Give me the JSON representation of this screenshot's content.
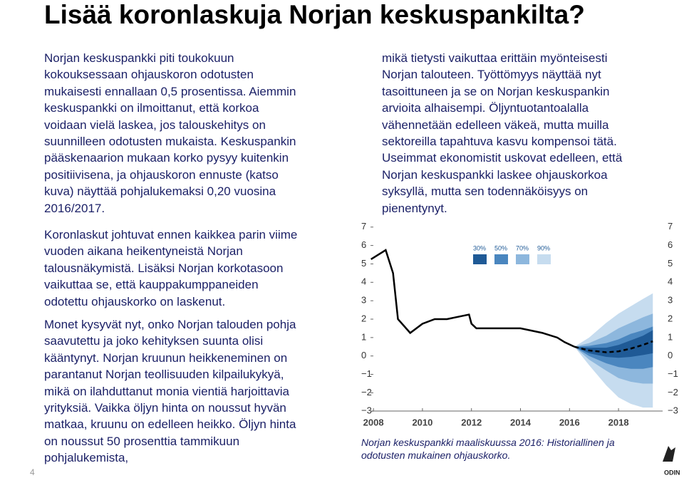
{
  "title": "Lisää koronlaskuja Norjan keskuspankilta?",
  "left_column": {
    "paragraphs": [
      {
        "lines": [
          "Norjan keskuspankki piti toukokuun",
          "kokouksessaan ohjauskoron odotusten",
          "mukaisesti ennallaan 0,5 prosentissa. Aiemmin",
          "keskuspankki on ilmoittanut, että korkoa",
          "voidaan vielä laskea, jos talouskehitys on",
          "suunnilleen odotusten mukaista. Keskuspankin",
          "pääskenaarion mukaan korko pysyy kuitenkin",
          "positiivisena, ja ohjauskoron ennuste (katso",
          "kuva) näyttää pohjalukemaksi 0,20 vuosina",
          "2016/2017."
        ]
      },
      {
        "lines": [
          "Koronlaskut johtuvat ennen kaikkea parin viime",
          "vuoden aikana heikentyneistä Norjan",
          "talousnäkymistä. Lisäksi Norjan korkotasoon",
          "vaikuttaa se, että kauppakumppaneiden",
          "odotettu ohjauskorko on laskenut."
        ]
      },
      {
        "lines": [
          "Monet kysyvät nyt, onko Norjan talouden pohja",
          "saavutettu ja joko kehityksen suunta olisi",
          "kääntynyt. Norjan kruunun heikkeneminen on",
          "parantanut Norjan teollisuuden kilpailukykyä,",
          "mikä on ilahduttanut monia vientiä harjoittavia",
          "yrityksiä. Vaikka öljyn hinta on noussut hyvän",
          "matkaa, kruunu on edelleen heikko. Öljyn hinta",
          "on noussut 50 prosenttia tammikuun",
          "pohjalukemista,"
        ]
      }
    ]
  },
  "right_column": {
    "lines": [
      "mikä tietysti vaikuttaa erittäin myönteisesti",
      "Norjan talouteen. Työttömyys näyttää nyt",
      "tasoittuneen ja se on Norjan keskuspankin",
      "arvioita alhaisempi. Öljyntuotantoalalla",
      "vähennetään edelleen väkeä, mutta muilla",
      "sektoreilla tapahtuva kasvu kompensoi tätä.",
      "Useimmat ekonomistit uskovat edelleen, että",
      "Norjan keskuspankki laskee ohjauskorkoa",
      "syksyllä, mutta sen todennäköisyys on",
      "pienentynyt."
    ]
  },
  "chart_data": {
    "type": "fan",
    "x_history": [
      2007.9,
      2008.5,
      2008.8,
      2009.0,
      2009.5,
      2010.0,
      2010.5,
      2011.0,
      2011.9,
      2012.0,
      2012.2,
      2014.0,
      2014.9,
      2015.5,
      2015.8,
      2016.2
    ],
    "history": [
      5.25,
      5.75,
      4.5,
      2.0,
      1.25,
      1.75,
      2.0,
      2.0,
      2.25,
      1.75,
      1.5,
      1.5,
      1.25,
      1.0,
      0.75,
      0.5
    ],
    "line_color": "#000000",
    "x_forecast": [
      2016.2,
      2016.8,
      2017.5,
      2018.0,
      2018.5,
      2019.0,
      2019.4
    ],
    "forecast": [
      0.5,
      0.3,
      0.2,
      0.25,
      0.4,
      0.6,
      0.8
    ],
    "bands": [
      {
        "name": "90%",
        "color": "#c6dcef",
        "lower": [
          0.5,
          -0.5,
          -1.6,
          -2.25,
          -2.6,
          -2.8,
          -2.8
        ],
        "upper": [
          0.5,
          1.0,
          1.8,
          2.3,
          2.7,
          3.1,
          3.4
        ]
      },
      {
        "name": "70%",
        "color": "#8db7dd",
        "lower": [
          0.5,
          -0.2,
          -0.8,
          -1.2,
          -1.4,
          -1.5,
          -1.5
        ],
        "upper": [
          0.5,
          0.7,
          1.1,
          1.5,
          1.8,
          2.1,
          2.3
        ]
      },
      {
        "name": "50%",
        "color": "#4a86bf",
        "lower": [
          0.5,
          0.0,
          -0.4,
          -0.6,
          -0.7,
          -0.7,
          -0.6
        ],
        "upper": [
          0.5,
          0.55,
          0.7,
          0.9,
          1.2,
          1.4,
          1.6
        ]
      },
      {
        "name": "30%",
        "color": "#1f5a96",
        "lower": [
          0.5,
          0.15,
          -0.05,
          -0.1,
          -0.05,
          0.05,
          0.15
        ],
        "upper": [
          0.5,
          0.45,
          0.45,
          0.6,
          0.85,
          1.1,
          1.4
        ]
      }
    ],
    "legend_order": [
      "30%",
      "50%",
      "70%",
      "90%"
    ],
    "xlim": [
      2007.88,
      2019.8
    ],
    "xticks": [
      2008,
      2010,
      2012,
      2014,
      2016,
      2018
    ],
    "ylim": [
      -3.3,
      7.3
    ],
    "yticks": [
      {
        "value": -3,
        "label": "−3"
      },
      {
        "value": -2,
        "label": "−2"
      },
      {
        "value": -1,
        "label": "−1"
      },
      0,
      1,
      2,
      3,
      4,
      5,
      6,
      7
    ]
  },
  "caption": {
    "lines": [
      "Norjan keskuspankki maaliskuussa 2016: Historiallinen ja",
      "odotusten mukainen ohjauskorko."
    ]
  },
  "page_number": "4",
  "logo": "ODIN"
}
